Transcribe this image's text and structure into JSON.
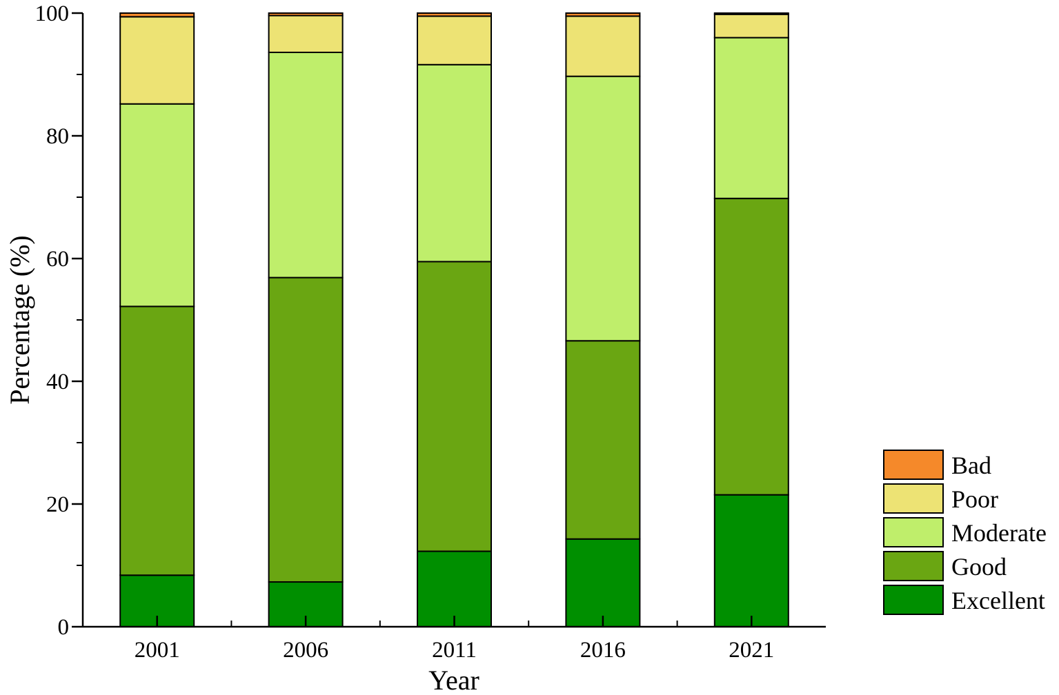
{
  "chart_data": {
    "type": "bar",
    "stacked": true,
    "categories": [
      "2001",
      "2006",
      "2011",
      "2016",
      "2021"
    ],
    "series": [
      {
        "name": "Excellent",
        "color": "#008f00",
        "values": [
          8.4,
          7.3,
          12.3,
          14.3,
          21.5
        ]
      },
      {
        "name": "Good",
        "color": "#6aa612",
        "values": [
          43.8,
          49.6,
          47.2,
          32.3,
          48.3
        ]
      },
      {
        "name": "Moderate",
        "color": "#bfee6b",
        "values": [
          33.0,
          36.7,
          32.1,
          43.1,
          26.2
        ]
      },
      {
        "name": "Poor",
        "color": "#ede374",
        "values": [
          14.2,
          6.0,
          7.9,
          9.8,
          3.8
        ]
      },
      {
        "name": "Bad",
        "color": "#f5892a",
        "values": [
          0.6,
          0.4,
          0.5,
          0.5,
          0.2
        ]
      }
    ],
    "legend_order": [
      "Bad",
      "Poor",
      "Moderate",
      "Good",
      "Excellent"
    ],
    "legend_position": "bottom-right",
    "xlabel": "Year",
    "ylabel": "Percentage (%)",
    "ylim": [
      0,
      100
    ],
    "yticks": [
      0,
      20,
      40,
      60,
      80,
      100
    ],
    "grid": false
  }
}
